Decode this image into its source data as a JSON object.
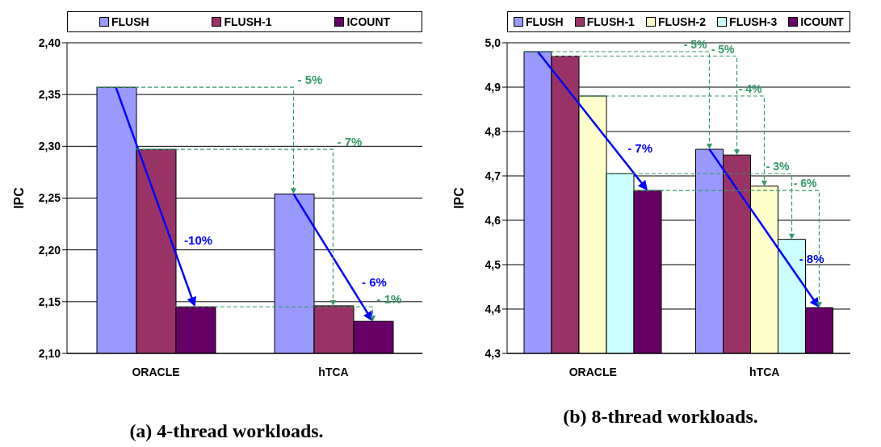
{
  "chart_data": [
    {
      "type": "bar",
      "title": "(a) 4-thread workloads.",
      "ylabel": "IPC",
      "categories": [
        "ORACLE",
        "hTCA"
      ],
      "series": [
        {
          "name": "FLUSH",
          "color": "#9999ff",
          "values": [
            2.357,
            2.254
          ]
        },
        {
          "name": "FLUSH-1",
          "color": "#993366",
          "values": [
            2.297,
            2.146
          ]
        },
        {
          "name": "ICOUNT",
          "color": "#660066",
          "values": [
            2.145,
            2.131
          ]
        }
      ],
      "ylim": [
        2.1,
        2.4
      ],
      "yticks": [
        {
          "value": 2.1,
          "label": "2,10"
        },
        {
          "value": 2.15,
          "label": "2,15"
        },
        {
          "value": 2.2,
          "label": "2,20"
        },
        {
          "value": 2.25,
          "label": "2,25"
        },
        {
          "value": 2.3,
          "label": "2,30"
        },
        {
          "value": 2.35,
          "label": "2,35"
        },
        {
          "value": 2.4,
          "label": "2,40"
        }
      ],
      "grid": "y",
      "legend": "top",
      "annotations": [
        "-10%",
        "- 6%",
        "- 5%",
        "- 7%",
        "- 1%"
      ]
    },
    {
      "type": "bar",
      "title": "(b) 8-thread workloads.",
      "ylabel": "IPC",
      "categories": [
        "ORACLE",
        "hTCA"
      ],
      "series": [
        {
          "name": "FLUSH",
          "color": "#9999ff",
          "values": [
            4.98,
            4.76
          ]
        },
        {
          "name": "FLUSH-1",
          "color": "#993366",
          "values": [
            4.97,
            4.747
          ]
        },
        {
          "name": "FLUSH-2",
          "color": "#ffffcc",
          "values": [
            4.88,
            4.677
          ]
        },
        {
          "name": "FLUSH-3",
          "color": "#ccffff",
          "values": [
            4.705,
            4.557
          ]
        },
        {
          "name": "ICOUNT",
          "color": "#660066",
          "values": [
            4.667,
            4.403
          ]
        }
      ],
      "ylim": [
        4.3,
        5.0
      ],
      "yticks": [
        {
          "value": 4.3,
          "label": "4,3"
        },
        {
          "value": 4.4,
          "label": "4,4"
        },
        {
          "value": 4.5,
          "label": "4,5"
        },
        {
          "value": 4.6,
          "label": "4,6"
        },
        {
          "value": 4.7,
          "label": "4,7"
        },
        {
          "value": 4.8,
          "label": "4,8"
        },
        {
          "value": 4.9,
          "label": "4,9"
        },
        {
          "value": 5.0,
          "label": "5,0"
        }
      ],
      "grid": "y",
      "legend": "top",
      "annotations": [
        "- 7%",
        "- 8%",
        "- 5%",
        "- 5%",
        "- 4%",
        "- 3%",
        "- 6%"
      ]
    }
  ]
}
